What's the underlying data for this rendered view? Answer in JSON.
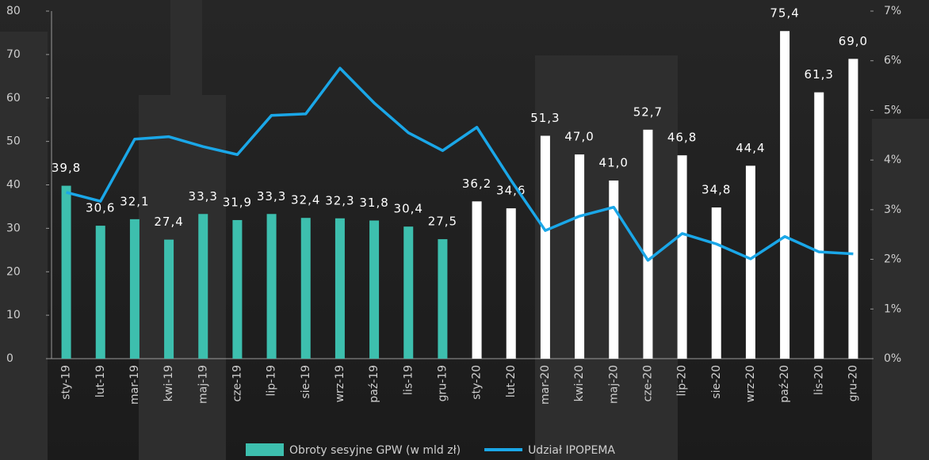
{
  "chart_data": {
    "type": "bar_line",
    "categories": [
      "sty-19",
      "lut-19",
      "mar-19",
      "kwi-19",
      "maj-19",
      "cze-19",
      "lip-19",
      "sie-19",
      "wrz-19",
      "paź-19",
      "lis-19",
      "gru-19",
      "sty-20",
      "lut-20",
      "mar-20",
      "kwi-20",
      "maj-20",
      "cze-20",
      "lip-20",
      "sie-20",
      "wrz-20",
      "paź-20",
      "lis-20",
      "gru-20"
    ],
    "series": [
      {
        "name": "Obroty sesyjne GPW (w mld zł)",
        "type": "bar",
        "color": "#3dbfae",
        "bar_colors": [
          "#3dbfae",
          "#3dbfae",
          "#3dbfae",
          "#3dbfae",
          "#3dbfae",
          "#3dbfae",
          "#3dbfae",
          "#3dbfae",
          "#3dbfae",
          "#3dbfae",
          "#3dbfae",
          "#3dbfae",
          "#ffffff",
          "#ffffff",
          "#ffffff",
          "#ffffff",
          "#ffffff",
          "#ffffff",
          "#ffffff",
          "#ffffff",
          "#ffffff",
          "#ffffff",
          "#ffffff",
          "#ffffff"
        ],
        "values": [
          39.8,
          30.6,
          32.1,
          27.4,
          33.3,
          31.9,
          33.3,
          32.4,
          32.3,
          31.8,
          30.4,
          27.5,
          36.2,
          34.6,
          51.3,
          47.0,
          41.0,
          52.7,
          46.8,
          34.8,
          44.4,
          75.4,
          61.3,
          69.0
        ],
        "value_labels": [
          "39,8",
          "30,6",
          "32,1",
          "27,4",
          "33,3",
          "31,9",
          "33,3",
          "32,4",
          "32,3",
          "31,8",
          "30,4",
          "27,5",
          "36,2",
          "34,6",
          "51,3",
          "47,0",
          "41,0",
          "52,7",
          "46,8",
          "34,8",
          "44,4",
          "75,4",
          "61,3",
          "69,0"
        ]
      },
      {
        "name": "Udział IPOPEMA",
        "type": "line",
        "axis": "y2",
        "color": "#1aa7e8",
        "values": [
          3.35,
          3.17,
          4.42,
          4.47,
          4.27,
          4.11,
          4.9,
          4.93,
          5.85,
          5.15,
          4.55,
          4.19,
          4.66,
          3.59,
          2.58,
          2.87,
          3.05,
          1.98,
          2.52,
          2.31,
          2.01,
          2.46,
          2.15,
          2.11
        ]
      }
    ],
    "ylim": [
      0,
      80
    ],
    "yticks": [
      0,
      10,
      20,
      30,
      40,
      50,
      60,
      70,
      80
    ],
    "y2lim": [
      0,
      7
    ],
    "y2ticks": [
      {
        "value": 0,
        "label": "0%"
      },
      {
        "value": 1,
        "label": "1%"
      },
      {
        "value": 2,
        "label": "2%"
      },
      {
        "value": 3,
        "label": "3%"
      },
      {
        "value": 4,
        "label": "4%"
      },
      {
        "value": 5,
        "label": "5%"
      },
      {
        "value": 6,
        "label": "6%"
      },
      {
        "value": 7,
        "label": "7%"
      }
    ],
    "legend": "bottom"
  }
}
